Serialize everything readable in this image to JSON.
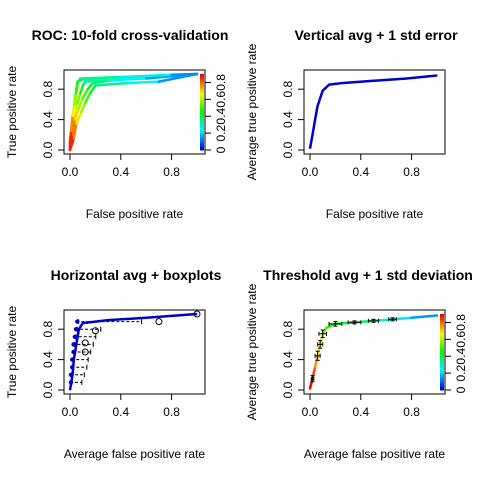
{
  "colors": {
    "avg_line": "#0000cc",
    "frame": "#000000",
    "whisker": "#000000"
  },
  "chart_data": [
    {
      "type": "line",
      "title": "ROC: 10-fold cross-validation",
      "xlabel": "False positive rate",
      "ylabel": "True positive rate",
      "xlim": [
        0,
        1
      ],
      "ylim": [
        0,
        1
      ],
      "xticks": [
        "0.0",
        "0.4",
        "0.8"
      ],
      "yticks": [
        "0.0",
        "0.4",
        "0.8"
      ],
      "colorize": true,
      "colorbar_ticks": [
        "0",
        "0.2",
        "0.4",
        "0.6",
        "0.8"
      ],
      "series": [
        {
          "points": [
            [
              0,
              0
            ],
            [
              0,
              0.12
            ],
            [
              0.01,
              0.28
            ],
            [
              0.02,
              0.42
            ],
            [
              0.03,
              0.55
            ],
            [
              0.04,
              0.68
            ],
            [
              0.05,
              0.8
            ],
            [
              0.06,
              0.9
            ],
            [
              0.1,
              0.93
            ],
            [
              0.3,
              0.95
            ],
            [
              0.6,
              0.97
            ],
            [
              1,
              1
            ]
          ]
        },
        {
          "points": [
            [
              0,
              0
            ],
            [
              0.01,
              0.18
            ],
            [
              0.03,
              0.35
            ],
            [
              0.05,
              0.5
            ],
            [
              0.06,
              0.62
            ],
            [
              0.08,
              0.74
            ],
            [
              0.1,
              0.84
            ],
            [
              0.12,
              0.9
            ],
            [
              0.3,
              0.92
            ],
            [
              0.6,
              0.94
            ],
            [
              1,
              1
            ]
          ]
        },
        {
          "points": [
            [
              0,
              0
            ],
            [
              0.02,
              0.2
            ],
            [
              0.04,
              0.4
            ],
            [
              0.07,
              0.55
            ],
            [
              0.1,
              0.68
            ],
            [
              0.14,
              0.8
            ],
            [
              0.18,
              0.88
            ],
            [
              0.3,
              0.91
            ],
            [
              0.6,
              0.95
            ],
            [
              1,
              1
            ]
          ]
        },
        {
          "points": [
            [
              0,
              0
            ],
            [
              0.03,
              0.15
            ],
            [
              0.05,
              0.35
            ],
            [
              0.09,
              0.5
            ],
            [
              0.12,
              0.62
            ],
            [
              0.16,
              0.75
            ],
            [
              0.2,
              0.85
            ],
            [
              0.45,
              0.88
            ],
            [
              0.7,
              0.9
            ],
            [
              1,
              1
            ]
          ]
        },
        {
          "points": [
            [
              0,
              0
            ],
            [
              0.01,
              0.25
            ],
            [
              0.02,
              0.45
            ],
            [
              0.04,
              0.6
            ],
            [
              0.05,
              0.75
            ],
            [
              0.06,
              0.88
            ],
            [
              0.08,
              0.94
            ],
            [
              0.4,
              0.96
            ],
            [
              0.8,
              0.99
            ],
            [
              1,
              1
            ]
          ]
        }
      ]
    },
    {
      "type": "line",
      "title": "Vertical avg + 1 std error",
      "xlabel": "False positive rate",
      "ylabel": "Average true positive rate",
      "xlim": [
        0,
        1
      ],
      "ylim": [
        0,
        1
      ],
      "xticks": [
        "0.0",
        "0.4",
        "0.8"
      ],
      "yticks": [
        "0.0",
        "0.4",
        "0.8"
      ],
      "series": [
        {
          "points": [
            [
              0,
              0.02
            ],
            [
              0.02,
              0.2
            ],
            [
              0.04,
              0.4
            ],
            [
              0.06,
              0.58
            ],
            [
              0.1,
              0.78
            ],
            [
              0.15,
              0.86
            ],
            [
              0.25,
              0.88
            ],
            [
              0.5,
              0.91
            ],
            [
              0.75,
              0.94
            ],
            [
              1,
              0.98
            ]
          ]
        }
      ]
    },
    {
      "type": "line",
      "title": "Horizontal avg + boxplots",
      "xlabel": "Average false positive rate",
      "ylabel": "True positive rate",
      "xlim": [
        0,
        1
      ],
      "ylim": [
        0,
        1
      ],
      "xticks": [
        "0.0",
        "0.4",
        "0.8"
      ],
      "yticks": [
        "0.0",
        "0.4",
        "0.8"
      ],
      "series": [
        {
          "points": [
            [
              0,
              0
            ],
            [
              0.01,
              0.1
            ],
            [
              0.02,
              0.2
            ],
            [
              0.025,
              0.3
            ],
            [
              0.03,
              0.4
            ],
            [
              0.04,
              0.5
            ],
            [
              0.05,
              0.6
            ],
            [
              0.06,
              0.7
            ],
            [
              0.07,
              0.8
            ],
            [
              0.1,
              0.88
            ],
            [
              0.3,
              0.92
            ],
            [
              0.6,
              0.95
            ],
            [
              1,
              1
            ]
          ]
        }
      ],
      "boxplot_y": [
        0.1,
        0.2,
        0.3,
        0.4,
        0.5,
        0.6,
        0.7,
        0.8,
        0.9
      ],
      "boxplot_whiskers": [
        [
          0,
          0.03
        ],
        [
          0,
          0.05
        ],
        [
          0.01,
          0.07
        ],
        [
          0.01,
          0.08
        ],
        [
          0.02,
          0.1
        ],
        [
          0.02,
          0.12
        ],
        [
          0.03,
          0.14
        ],
        [
          0.04,
          0.18
        ],
        [
          0.05,
          0.5
        ]
      ],
      "outliers": [
        [
          0.12,
          0.5
        ],
        [
          0.12,
          0.62
        ],
        [
          0.2,
          0.78
        ],
        [
          0.7,
          0.9
        ],
        [
          1,
          1
        ]
      ]
    },
    {
      "type": "line",
      "title": "Threshold avg + 1 std deviation",
      "xlabel": "Average false positive rate",
      "ylabel": "Average true positive rate",
      "xlim": [
        0,
        1
      ],
      "ylim": [
        0,
        1
      ],
      "xticks": [
        "0.0",
        "0.4",
        "0.8"
      ],
      "yticks": [
        "0.0",
        "0.4",
        "0.8"
      ],
      "colorize": true,
      "colorbar_ticks": [
        "0",
        "0.2",
        "0.4",
        "0.6",
        "0.8"
      ],
      "series": [
        {
          "points": [
            [
              0,
              0.02
            ],
            [
              0.02,
              0.15
            ],
            [
              0.04,
              0.3
            ],
            [
              0.06,
              0.45
            ],
            [
              0.08,
              0.6
            ],
            [
              0.1,
              0.74
            ],
            [
              0.13,
              0.82
            ],
            [
              0.2,
              0.87
            ],
            [
              0.35,
              0.89
            ],
            [
              0.5,
              0.91
            ],
            [
              0.65,
              0.93
            ],
            [
              0.8,
              0.95
            ],
            [
              1,
              0.98
            ]
          ]
        }
      ],
      "error_bars": [
        {
          "x": 0.02,
          "y": 0.15,
          "sx": 0.01,
          "sy": 0.04
        },
        {
          "x": 0.06,
          "y": 0.45,
          "sx": 0.02,
          "sy": 0.06
        },
        {
          "x": 0.08,
          "y": 0.6,
          "sx": 0.02,
          "sy": 0.05
        },
        {
          "x": 0.1,
          "y": 0.74,
          "sx": 0.03,
          "sy": 0.05
        },
        {
          "x": 0.2,
          "y": 0.87,
          "sx": 0.05,
          "sy": 0.03
        },
        {
          "x": 0.35,
          "y": 0.89,
          "sx": 0.05,
          "sy": 0.02
        },
        {
          "x": 0.5,
          "y": 0.91,
          "sx": 0.04,
          "sy": 0.02
        },
        {
          "x": 0.65,
          "y": 0.93,
          "sx": 0.03,
          "sy": 0.02
        }
      ]
    }
  ]
}
